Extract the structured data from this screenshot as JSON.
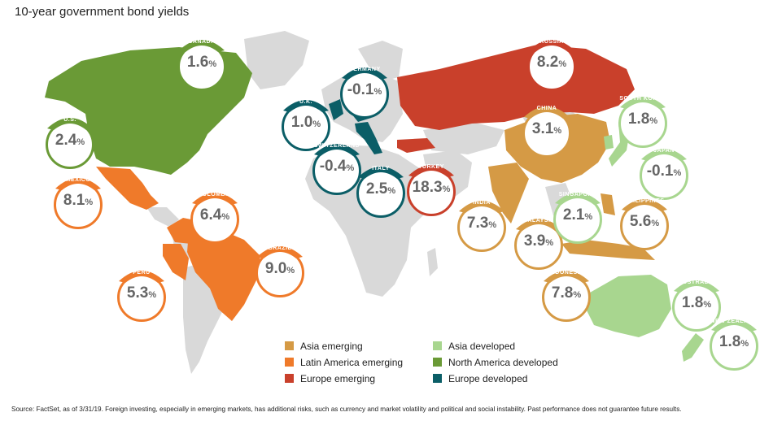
{
  "title": "10-year government bond yields",
  "source": "Source: FactSet, as of 3/31/19. Foreign investing, especially in emerging markets, has additional risks, such as currency and market volatility and political and social instability. Past performance does not guarantee future results.",
  "colors": {
    "asia_emerging": "#d59a45",
    "latam_emerging": "#ef7a2a",
    "europe_emerging": "#c9402b",
    "asia_developed": "#a8d68f",
    "na_developed": "#6a9a36",
    "europe_developed": "#0b5e67",
    "land": "#d9d9d9"
  },
  "legend": [
    {
      "label": "Asia emerging",
      "color": "#d59a45"
    },
    {
      "label": "Latin America emerging",
      "color": "#ef7a2a"
    },
    {
      "label": "Europe emerging",
      "color": "#c9402b"
    },
    {
      "label": "Asia developed",
      "color": "#a8d68f"
    },
    {
      "label": "North America developed",
      "color": "#6a9a36"
    },
    {
      "label": "Europe developed",
      "color": "#0b5e67"
    }
  ],
  "countries": [
    {
      "name": "CANADA",
      "value": "1.6",
      "color": "#6a9a36"
    },
    {
      "name": "U.S.",
      "value": "2.4",
      "color": "#6a9a36"
    },
    {
      "name": "MEXICO",
      "value": "8.1",
      "color": "#ef7a2a"
    },
    {
      "name": "COLOMBIA",
      "value": "6.4",
      "color": "#ef7a2a"
    },
    {
      "name": "BRAZIL",
      "value": "9.0",
      "color": "#ef7a2a"
    },
    {
      "name": "PERU",
      "value": "5.3",
      "color": "#ef7a2a"
    },
    {
      "name": "GERMANY",
      "value": "-0.1",
      "color": "#0b5e67"
    },
    {
      "name": "U.K.",
      "value": "1.0",
      "color": "#0b5e67"
    },
    {
      "name": "SWITZERLAND",
      "value": "-0.4",
      "color": "#0b5e67"
    },
    {
      "name": "ITALY",
      "value": "2.5",
      "color": "#0b5e67"
    },
    {
      "name": "TURKEY",
      "value": "18.3",
      "color": "#c9402b"
    },
    {
      "name": "RUSSIA",
      "value": "8.2",
      "color": "#c9402b"
    },
    {
      "name": "CHINA",
      "value": "3.1",
      "color": "#d59a45"
    },
    {
      "name": "INDIA",
      "value": "7.3",
      "color": "#d59a45"
    },
    {
      "name": "MALAYSIA",
      "value": "3.9",
      "color": "#d59a45"
    },
    {
      "name": "INDONESIA",
      "value": "7.8",
      "color": "#d59a45"
    },
    {
      "name": "SOUTH KOREA",
      "value": "1.8",
      "color": "#a8d68f"
    },
    {
      "name": "JAPAN",
      "value": "-0.1",
      "color": "#a8d68f"
    },
    {
      "name": "SINGAPORE",
      "value": "2.1",
      "color": "#a8d68f"
    },
    {
      "name": "PHILIPPINES",
      "value": "5.6",
      "color": "#d59a45"
    },
    {
      "name": "AUSTRALIA",
      "value": "1.8",
      "color": "#a8d68f"
    },
    {
      "name": "NEW ZEALAND",
      "value": "1.8",
      "color": "#a8d68f"
    }
  ],
  "pct": "%"
}
